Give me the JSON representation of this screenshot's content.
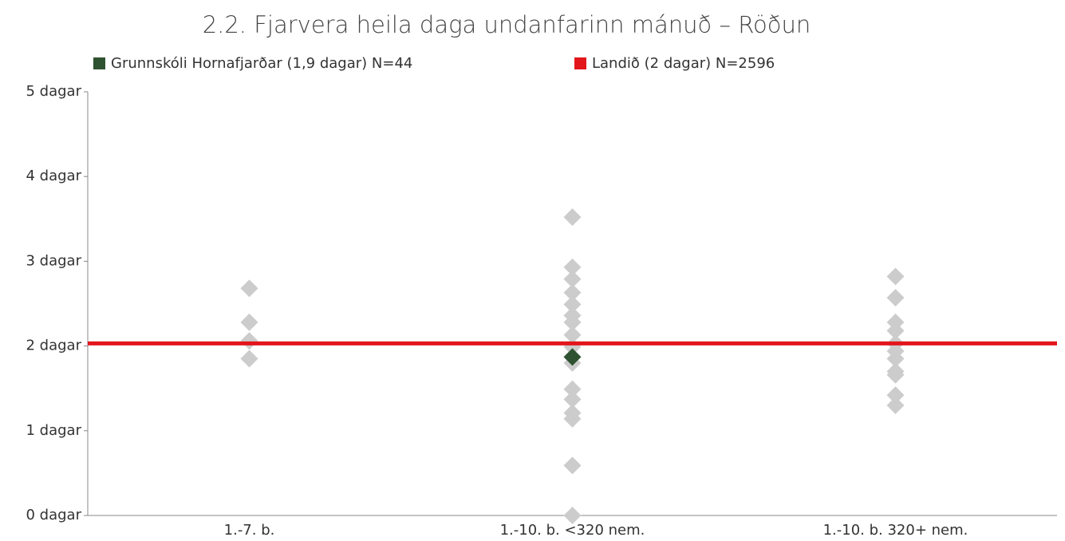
{
  "chart_data": {
    "type": "strip",
    "title": "2.2. Fjarvera heila daga undanfarinn mánuð – Röðun",
    "categories": [
      "1.-7. b.",
      "1.-10. b. <320 nem.",
      "1.-10. b. 320+ nem."
    ],
    "background_color": "#cccccc",
    "background_points": [
      [
        2.68,
        2.28,
        2.06,
        1.85
      ],
      [
        3.52,
        2.93,
        2.79,
        2.63,
        2.49,
        2.36,
        2.28,
        2.13,
        1.99,
        1.8,
        1.49,
        1.37,
        1.21,
        1.14,
        0.59,
        0
      ],
      [
        2.82,
        2.57,
        2.28,
        2.18,
        2.03,
        1.94,
        1.85,
        1.7,
        1.66,
        1.42,
        1.3
      ]
    ],
    "series": [
      {
        "name": "Grunnskóli Hornafjarðar (1,9 dagar) N=44",
        "color": "#2f5230",
        "kind": "marker",
        "values": [
          null,
          1.87,
          null
        ]
      },
      {
        "name": "Landið (2 dagar) N=2596",
        "color": "#e2161b",
        "kind": "hline",
        "value": 2.03
      }
    ],
    "ylim": [
      0,
      5
    ],
    "yticks": [
      {
        "value": 0,
        "label": "0 dagar"
      },
      {
        "value": 1,
        "label": "1 dagar"
      },
      {
        "value": 2,
        "label": "2 dagar"
      },
      {
        "value": 3,
        "label": "3 dagar"
      },
      {
        "value": 4,
        "label": "4 dagar"
      },
      {
        "value": 5,
        "label": "5 dagar"
      }
    ]
  }
}
